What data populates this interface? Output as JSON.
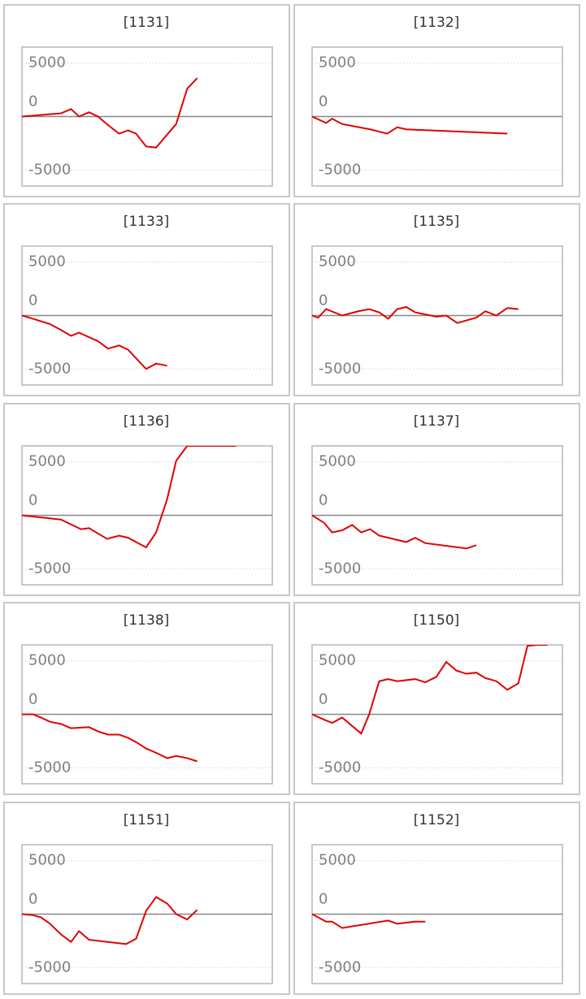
{
  "chart_data": [
    {
      "type": "line",
      "title": "[1131]",
      "color": "#e00000",
      "xlim": [
        0,
        25
      ],
      "ylim": [
        -6500,
        6500
      ],
      "yticks": [
        -5000,
        0,
        5000
      ],
      "x": [
        0,
        3.9,
        4.9,
        5.7,
        6.7,
        7.6,
        8.6,
        9.7,
        10.6,
        11.4,
        12.4,
        13.4,
        15.4,
        16.5,
        17.5
      ],
      "values": [
        0,
        300,
        700,
        0,
        400,
        0,
        -800,
        -1600,
        -1300,
        -1600,
        -2800,
        -2900,
        -700,
        2600,
        3600
      ]
    },
    {
      "type": "line",
      "title": "[1132]",
      "color": "#e00000",
      "xlim": [
        0,
        25
      ],
      "ylim": [
        -6500,
        6500
      ],
      "yticks": [
        -5000,
        0,
        5000
      ],
      "x": [
        0,
        1.4,
        2,
        3,
        5.8,
        7.5,
        8.5,
        9.4,
        19.5
      ],
      "values": [
        0,
        -600,
        -200,
        -700,
        -1200,
        -1600,
        -1000,
        -1200,
        -1600
      ]
    },
    {
      "type": "line",
      "title": "[1133]",
      "color": "#e00000",
      "xlim": [
        0,
        25
      ],
      "ylim": [
        -6500,
        6500
      ],
      "yticks": [
        -5000,
        0,
        5000
      ],
      "x": [
        0,
        1.1,
        2.8,
        3.8,
        4.9,
        5.7,
        7.6,
        8.6,
        9.7,
        10.6,
        12.4,
        13.4,
        14.5
      ],
      "values": [
        0,
        -300,
        -800,
        -1300,
        -1900,
        -1600,
        -2400,
        -3100,
        -2800,
        -3200,
        -5000,
        -4500,
        -4700
      ]
    },
    {
      "type": "line",
      "title": "[1135]",
      "color": "#e00000",
      "xlim": [
        0,
        25
      ],
      "ylim": [
        -6500,
        6500
      ],
      "yticks": [
        -5000,
        0,
        5000
      ],
      "x": [
        0,
        0.6,
        1.4,
        3,
        4.6,
        5.7,
        6.7,
        7.6,
        8.5,
        9.4,
        10.3,
        12.4,
        13.4,
        14.5,
        16.4,
        17.3,
        18.4,
        19.5,
        20.6
      ],
      "values": [
        0,
        -200,
        600,
        0,
        400,
        600,
        300,
        -300,
        600,
        800,
        300,
        -100,
        0,
        -700,
        -200,
        400,
        0,
        700,
        600
      ]
    },
    {
      "type": "line",
      "title": "[1136]",
      "color": "#e00000",
      "xlim": [
        0,
        25
      ],
      "ylim": [
        -6500,
        6500
      ],
      "yticks": [
        -5000,
        0,
        5000
      ],
      "x": [
        0,
        3.9,
        5.9,
        6.7,
        8.5,
        9.7,
        10.6,
        12.4,
        13.4,
        14.5,
        15.4,
        16.5,
        21.4
      ],
      "values": [
        0,
        -400,
        -1300,
        -1200,
        -2200,
        -1900,
        -2100,
        -3000,
        -1600,
        1500,
        5100,
        6500,
        6500
      ]
    },
    {
      "type": "line",
      "title": "[1137]",
      "color": "#e00000",
      "xlim": [
        0,
        25
      ],
      "ylim": [
        -6500,
        6500
      ],
      "yticks": [
        -5000,
        0,
        5000
      ],
      "x": [
        0,
        1.2,
        2,
        3,
        4,
        4.9,
        5.8,
        6.7,
        9.4,
        10.3,
        11.3,
        15.4,
        16.4
      ],
      "values": [
        0,
        -700,
        -1600,
        -1400,
        -900,
        -1600,
        -1300,
        -1900,
        -2500,
        -2100,
        -2600,
        -3100,
        -2800
      ]
    },
    {
      "type": "line",
      "title": "[1138]",
      "color": "#e00000",
      "xlim": [
        0,
        25
      ],
      "ylim": [
        -6500,
        6500
      ],
      "yticks": [
        -5000,
        0,
        5000
      ],
      "x": [
        0,
        1.1,
        1.9,
        2.8,
        3.9,
        4.9,
        6.7,
        7.6,
        8.6,
        9.7,
        10.6,
        11.4,
        12.4,
        13.4,
        14.5,
        15.4,
        16.5,
        17.5
      ],
      "values": [
        0,
        0,
        -300,
        -700,
        -900,
        -1300,
        -1200,
        -1600,
        -1900,
        -1900,
        -2200,
        -2600,
        -3200,
        -3600,
        -4100,
        -3900,
        -4100,
        -4400
      ]
    },
    {
      "type": "line",
      "title": "[1150]",
      "color": "#e00000",
      "xlim": [
        0,
        25
      ],
      "ylim": [
        -6500,
        6500
      ],
      "yticks": [
        -5000,
        0,
        5000
      ],
      "x": [
        0,
        1.2,
        2,
        3,
        4.9,
        5.7,
        6.7,
        7.6,
        8.5,
        10.3,
        11.3,
        12.4,
        13.4,
        14.4,
        15.4,
        16.4,
        17.3,
        18.4,
        19.5,
        20.6,
        21.5,
        22.5,
        23.5
      ],
      "values": [
        0,
        -500,
        -800,
        -300,
        -1800,
        0,
        3100,
        3300,
        3100,
        3300,
        3000,
        3500,
        4900,
        4100,
        3800,
        3900,
        3400,
        3100,
        2300,
        2900,
        6400,
        6500,
        6500
      ]
    },
    {
      "type": "line",
      "title": "[1151]",
      "color": "#e00000",
      "xlim": [
        0,
        25
      ],
      "ylim": [
        -6500,
        6500
      ],
      "yticks": [
        -5000,
        0,
        5000
      ],
      "x": [
        0,
        1.1,
        1.9,
        2.8,
        3.9,
        4.9,
        5.7,
        6.7,
        7.6,
        10.4,
        11.4,
        12.4,
        13.4,
        14.5,
        15.4,
        16.5,
        17.5
      ],
      "values": [
        0,
        -100,
        -300,
        -900,
        -1900,
        -2600,
        -1600,
        -2400,
        -2500,
        -2800,
        -2300,
        300,
        1600,
        1000,
        0,
        -500,
        400
      ]
    },
    {
      "type": "line",
      "title": "[1152]",
      "color": "#e00000",
      "xlim": [
        0,
        25
      ],
      "ylim": [
        -6500,
        6500
      ],
      "yticks": [
        -5000,
        0,
        5000
      ],
      "x": [
        0,
        0.6,
        1.4,
        2,
        3,
        7.6,
        8.5,
        10.3,
        11.3
      ],
      "values": [
        0,
        -300,
        -700,
        -700,
        -1300,
        -600,
        -900,
        -700,
        -700
      ]
    }
  ]
}
